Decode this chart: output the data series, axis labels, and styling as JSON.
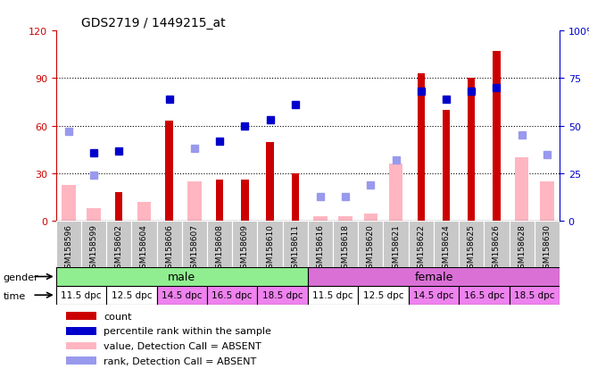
{
  "title": "GDS2719 / 1449215_at",
  "samples": [
    "GSM158596",
    "GSM158599",
    "GSM158602",
    "GSM158604",
    "GSM158606",
    "GSM158607",
    "GSM158608",
    "GSM158609",
    "GSM158610",
    "GSM158611",
    "GSM158616",
    "GSM158618",
    "GSM158620",
    "GSM158621",
    "GSM158622",
    "GSM158624",
    "GSM158625",
    "GSM158626",
    "GSM158628",
    "GSM158630"
  ],
  "red_bars": [
    0,
    0,
    18,
    0,
    63,
    0,
    26,
    26,
    50,
    30,
    0,
    0,
    0,
    0,
    93,
    70,
    90,
    107,
    0,
    0
  ],
  "pink_bars": [
    23,
    8,
    0,
    12,
    0,
    25,
    0,
    0,
    0,
    0,
    3,
    3,
    5,
    36,
    0,
    0,
    0,
    0,
    40,
    25
  ],
  "blue_squares": [
    0,
    36,
    37,
    0,
    64,
    0,
    42,
    50,
    53,
    61,
    0,
    0,
    0,
    0,
    68,
    64,
    68,
    70,
    0,
    0
  ],
  "lblue_squares": [
    47,
    24,
    0,
    0,
    0,
    38,
    0,
    0,
    0,
    0,
    13,
    13,
    19,
    32,
    0,
    0,
    0,
    0,
    45,
    35
  ],
  "left_ylim": [
    0,
    120
  ],
  "right_ylim": [
    0,
    100
  ],
  "left_yticks": [
    0,
    30,
    60,
    90,
    120
  ],
  "right_yticks": [
    0,
    25,
    50,
    75,
    100
  ],
  "right_yticklabels": [
    "0",
    "25",
    "50",
    "75",
    "100%"
  ],
  "red_color": "#CC0000",
  "pink_color": "#FFB6C1",
  "blue_color": "#0000CC",
  "lblue_color": "#9999EE",
  "left_axis_color": "#CC0000",
  "right_axis_color": "#0000CC",
  "grid_color": "#000000",
  "bg_color": "#FFFFFF",
  "title_color": "#000000",
  "male_color": "#90EE90",
  "female_color": "#DA70D6",
  "time_colors": [
    "#FFFFFF",
    "#FFFFFF",
    "#EE82EE",
    "#EE82EE",
    "#EE82EE"
  ],
  "time_labels": [
    "11.5 dpc",
    "12.5 dpc",
    "14.5 dpc",
    "16.5 dpc",
    "18.5 dpc"
  ],
  "xticklabel_bg": "#C8C8C8",
  "title_fontsize": 10,
  "axis_fontsize": 8,
  "legend_fontsize": 8,
  "tick_fontsize": 8
}
